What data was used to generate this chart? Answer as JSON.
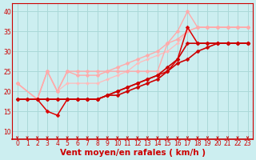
{
  "xlabel": "Vent moyen/en rafales ( km/h )",
  "ylabel": "",
  "bg_color": "#cceef0",
  "grid_color": "#aad8d8",
  "xlim": [
    -0.5,
    23.5
  ],
  "ylim": [
    8,
    42
  ],
  "yticks": [
    10,
    15,
    20,
    25,
    30,
    35,
    40
  ],
  "xticks": [
    0,
    1,
    2,
    3,
    4,
    5,
    6,
    7,
    8,
    9,
    10,
    11,
    12,
    13,
    14,
    15,
    16,
    17,
    18,
    19,
    20,
    21,
    22,
    23
  ],
  "series": [
    {
      "x": [
        0,
        1,
        2,
        3,
        4,
        5,
        6,
        7,
        8,
        9,
        10,
        11,
        12,
        13,
        14,
        15,
        16,
        17,
        18,
        19,
        20,
        21,
        22,
        23
      ],
      "y": [
        18,
        18,
        18,
        18,
        18,
        18,
        18,
        18,
        18,
        19,
        19,
        20,
        21,
        22,
        23,
        25,
        27,
        28,
        30,
        31,
        32,
        32,
        32,
        32
      ],
      "color": "#cc0000",
      "marker": "D",
      "lw": 1.2,
      "ms": 2.5,
      "zorder": 5
    },
    {
      "x": [
        0,
        1,
        2,
        3,
        4,
        5,
        6,
        7,
        8,
        9,
        10,
        11,
        12,
        13,
        14,
        15,
        16,
        17,
        18,
        19,
        20,
        21,
        22,
        23
      ],
      "y": [
        18,
        18,
        18,
        18,
        18,
        18,
        18,
        18,
        18,
        19,
        20,
        21,
        22,
        23,
        24,
        26,
        28,
        32,
        32,
        32,
        32,
        32,
        32,
        32
      ],
      "color": "#cc0000",
      "marker": "D",
      "lw": 1.2,
      "ms": 2.5,
      "zorder": 5
    },
    {
      "x": [
        2,
        3,
        4,
        5,
        6,
        7,
        8,
        9,
        10,
        11,
        12,
        13,
        14,
        15,
        16,
        17,
        18,
        19,
        20,
        21,
        22,
        23
      ],
      "y": [
        18,
        15,
        14,
        18,
        18,
        18,
        18,
        19,
        20,
        21,
        22,
        23,
        24,
        25,
        28,
        36,
        32,
        32,
        32,
        32,
        32,
        32
      ],
      "color": "#dd0000",
      "marker": "D",
      "lw": 1.1,
      "ms": 2.5,
      "zorder": 4
    },
    {
      "x": [
        0,
        2,
        3,
        4,
        5,
        6,
        7,
        8,
        9,
        10,
        11,
        12,
        13,
        14,
        15,
        16,
        17,
        18,
        19,
        20,
        21,
        22,
        23
      ],
      "y": [
        22,
        18,
        25,
        20,
        25,
        25,
        25,
        25,
        25,
        25,
        25,
        25,
        25,
        25,
        32,
        35,
        40,
        36,
        36,
        36,
        36,
        36,
        36
      ],
      "color": "#ffaaaa",
      "marker": "D",
      "lw": 1.0,
      "ms": 2.5,
      "zorder": 3
    },
    {
      "x": [
        0,
        2,
        3,
        4,
        5,
        6,
        7,
        8,
        9,
        10,
        11,
        12,
        13,
        14,
        15,
        16,
        17,
        18,
        19,
        20,
        21,
        22,
        23
      ],
      "y": [
        22,
        18,
        25,
        20,
        25,
        24,
        24,
        24,
        25,
        26,
        27,
        28,
        29,
        30,
        32,
        33,
        35,
        36,
        36,
        36,
        36,
        36,
        36
      ],
      "color": "#ffaaaa",
      "marker": "D",
      "lw": 1.0,
      "ms": 2.5,
      "zorder": 3
    },
    {
      "x": [
        0,
        2,
        3,
        4,
        5,
        6,
        7,
        8,
        9,
        10,
        11,
        12,
        13,
        14,
        15,
        16,
        17,
        18,
        19,
        20,
        21,
        22,
        23
      ],
      "y": [
        22,
        18,
        25,
        20,
        22,
        22,
        22,
        22,
        23,
        24,
        25,
        27,
        28,
        29,
        30,
        32,
        35,
        36,
        36,
        36,
        36,
        36,
        36
      ],
      "color": "#ffbbbb",
      "marker": "D",
      "lw": 0.9,
      "ms": 2.0,
      "zorder": 2
    }
  ],
  "arrow_color": "#cc0000",
  "tick_label_color": "#cc0000",
  "axis_label_color": "#cc0000",
  "tick_fontsize": 5.5,
  "xlabel_fontsize": 7.5
}
